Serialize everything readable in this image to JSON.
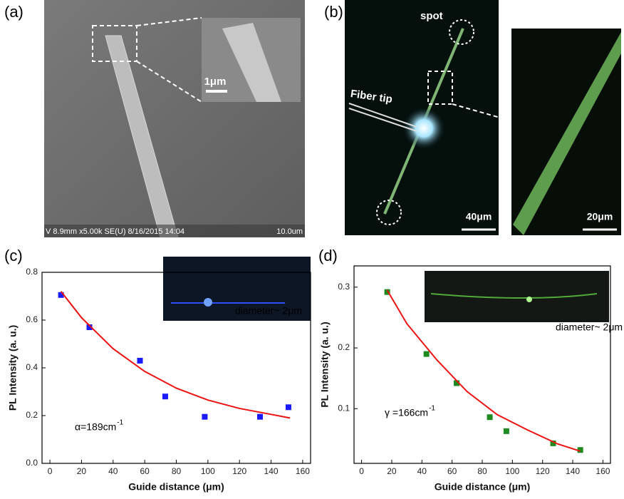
{
  "panels": {
    "a": {
      "label": "(a)",
      "scale_bar": "1μm",
      "info": "V 8.9mm x5.00k SE(U) 8/16/2015 14:04",
      "info_scale": "10.0um"
    },
    "b": {
      "label": "(b)",
      "spot": "spot",
      "fiber": "Fiber tip",
      "scale_bar_left": "40μm",
      "scale_bar_right": "20μm"
    }
  },
  "chart_data": [
    {
      "type": "scatter",
      "panel_label": "(c)",
      "x_label": "Guide distance (μm)",
      "y_label": "PL Intensity (a. u.)",
      "annotation": "α=189cm",
      "annotation_sup": "-1",
      "inset_label": "diameter~ 2μm",
      "xlim": [
        -5,
        165
      ],
      "xticks": [
        0,
        20,
        40,
        60,
        80,
        100,
        120,
        140,
        160
      ],
      "ylim": [
        0,
        0.8
      ],
      "yticks": [
        {
          "value": 0,
          "label": "0.0"
        },
        0.2,
        0.4,
        0.6,
        0.8
      ],
      "series": [
        {
          "style": "markers",
          "color": "#1a1aff",
          "x": [
            7,
            25,
            57,
            73,
            98,
            133,
            151
          ],
          "values": [
            0.705,
            0.57,
            0.43,
            0.28,
            0.195,
            0.195,
            0.235
          ]
        },
        {
          "style": "line",
          "color": "#ee1111",
          "x": [
            7,
            20,
            40,
            60,
            80,
            100,
            120,
            140,
            152
          ],
          "values": [
            0.72,
            0.61,
            0.48,
            0.385,
            0.315,
            0.265,
            0.23,
            0.205,
            0.19
          ]
        }
      ]
    },
    {
      "type": "scatter",
      "panel_label": "(d)",
      "x_label": "Guide distance (μm)",
      "y_label": "PL Intensity (a. u.)",
      "annotation": "γ =166cm",
      "annotation_sup": "-1",
      "inset_label": "diameter~ 2μm",
      "xlim": [
        -5,
        165
      ],
      "xticks": [
        0,
        20,
        40,
        60,
        80,
        100,
        120,
        140,
        160
      ],
      "ylim": [
        0.01,
        0.335
      ],
      "yticks": [
        0.1,
        0.2,
        0.3
      ],
      "series": [
        {
          "style": "markers",
          "color": "#1f8a1f",
          "x": [
            17,
            43,
            63,
            85,
            96,
            127,
            145
          ],
          "values": [
            0.292,
            0.19,
            0.142,
            0.086,
            0.063,
            0.043,
            0.032
          ]
        },
        {
          "style": "line",
          "color": "#ee1111",
          "x": [
            17,
            30,
            50,
            70,
            90,
            110,
            130,
            145
          ],
          "values": [
            0.295,
            0.24,
            0.18,
            0.128,
            0.09,
            0.065,
            0.042,
            0.03
          ]
        }
      ]
    }
  ]
}
